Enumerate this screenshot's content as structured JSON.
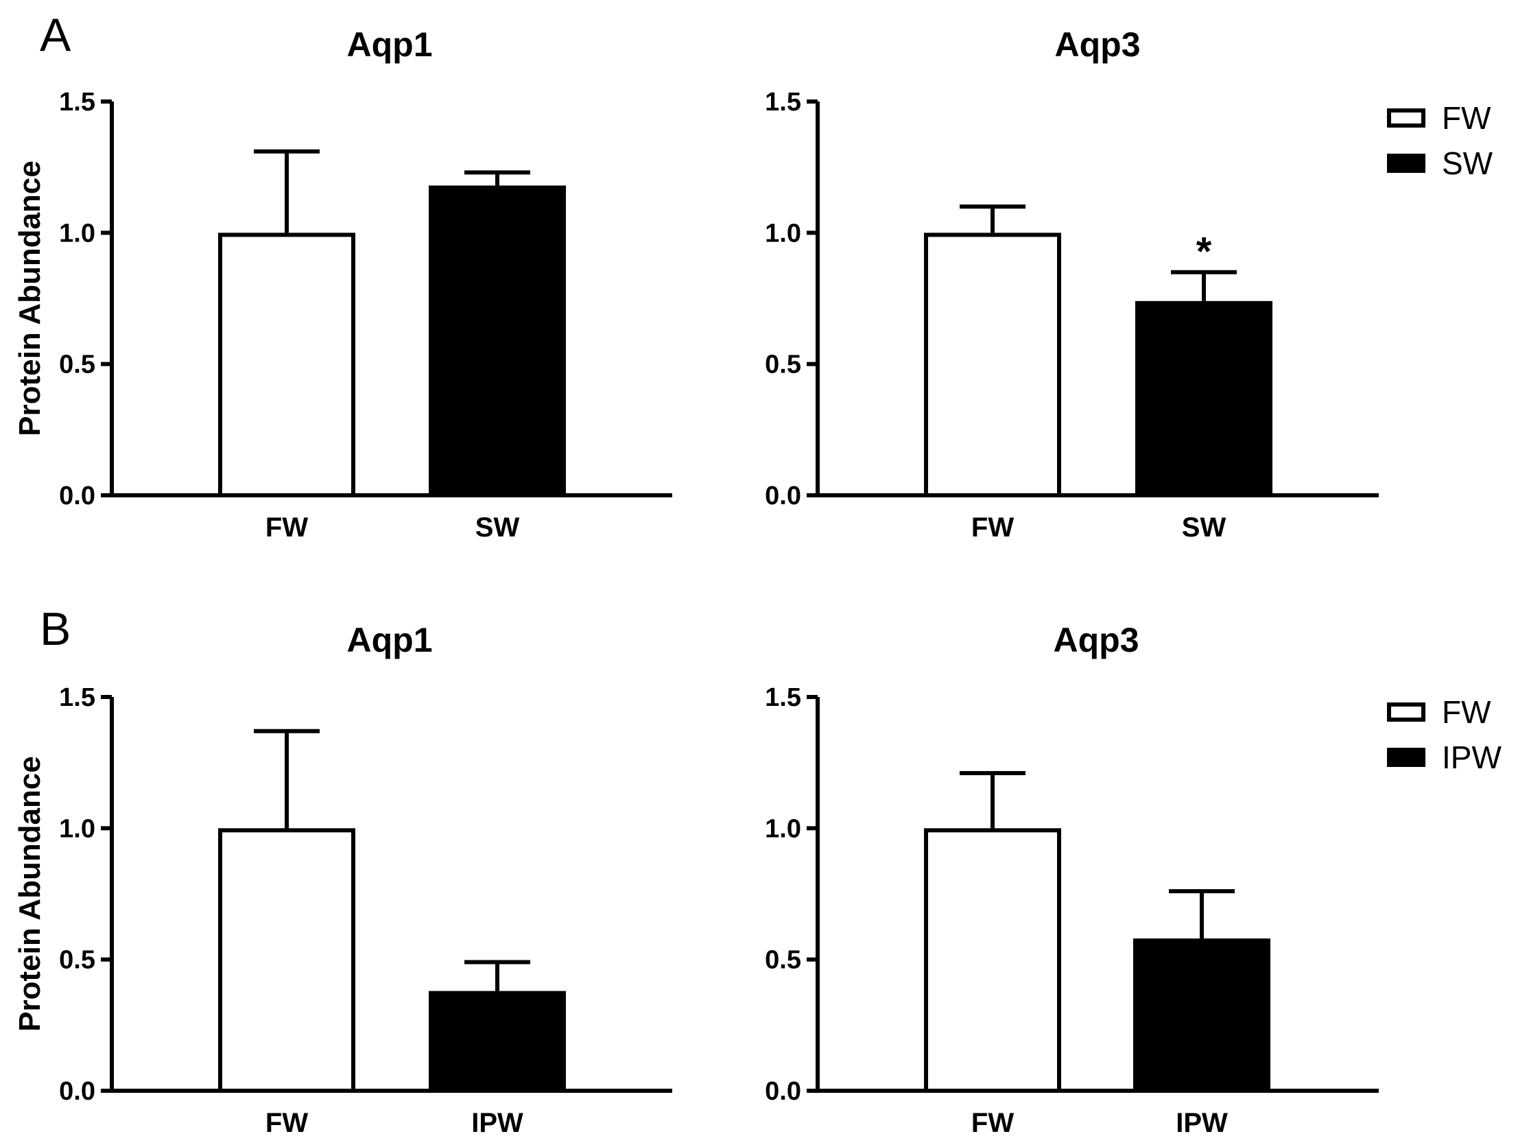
{
  "panels": {
    "A": "A",
    "B": "B"
  },
  "chart_data": [
    {
      "type": "bar",
      "panel": "A",
      "title": "Aqp1",
      "ylabel": "Protein Abundance",
      "xlabel": "",
      "categories": [
        "FW",
        "SW"
      ],
      "values": [
        1.0,
        1.18
      ],
      "errors": [
        0.31,
        0.05
      ],
      "fills": [
        "#ffffff",
        "#000000"
      ],
      "ylim": [
        0,
        1.5
      ],
      "yticks": [
        "0.0",
        "0.5",
        "1.0",
        "1.5"
      ],
      "significance": [
        "",
        ""
      ],
      "legend": []
    },
    {
      "type": "bar",
      "panel": "A",
      "title": "Aqp3",
      "ylabel": "",
      "xlabel": "",
      "categories": [
        "FW",
        "SW"
      ],
      "values": [
        1.0,
        0.74
      ],
      "errors": [
        0.1,
        0.11
      ],
      "fills": [
        "#ffffff",
        "#000000"
      ],
      "ylim": [
        0,
        1.5
      ],
      "yticks": [
        "0.0",
        "0.5",
        "1.0",
        "1.5"
      ],
      "significance": [
        "",
        "*"
      ],
      "legend": [
        {
          "label": "FW",
          "fill": "#ffffff"
        },
        {
          "label": "SW",
          "fill": "#000000"
        }
      ]
    },
    {
      "type": "bar",
      "panel": "B",
      "title": "Aqp1",
      "ylabel": "Protein Abundance",
      "xlabel": "",
      "categories": [
        "FW",
        "IPW"
      ],
      "values": [
        1.0,
        0.38
      ],
      "errors": [
        0.37,
        0.11
      ],
      "fills": [
        "#ffffff",
        "#000000"
      ],
      "ylim": [
        0,
        1.5
      ],
      "yticks": [
        "0.0",
        "0.5",
        "1.0",
        "1.5"
      ],
      "significance": [
        "",
        ""
      ],
      "legend": []
    },
    {
      "type": "bar",
      "panel": "B",
      "title": "Aqp3",
      "ylabel": "",
      "xlabel": "",
      "categories": [
        "FW",
        "IPW"
      ],
      "values": [
        1.0,
        0.58
      ],
      "errors": [
        0.21,
        0.18
      ],
      "fills": [
        "#ffffff",
        "#000000"
      ],
      "ylim": [
        0,
        1.5
      ],
      "yticks": [
        "0.0",
        "0.5",
        "1.0",
        "1.5"
      ],
      "significance": [
        "",
        ""
      ],
      "legend": [
        {
          "label": "FW",
          "fill": "#ffffff"
        },
        {
          "label": "IPW",
          "fill": "#000000"
        }
      ]
    }
  ]
}
